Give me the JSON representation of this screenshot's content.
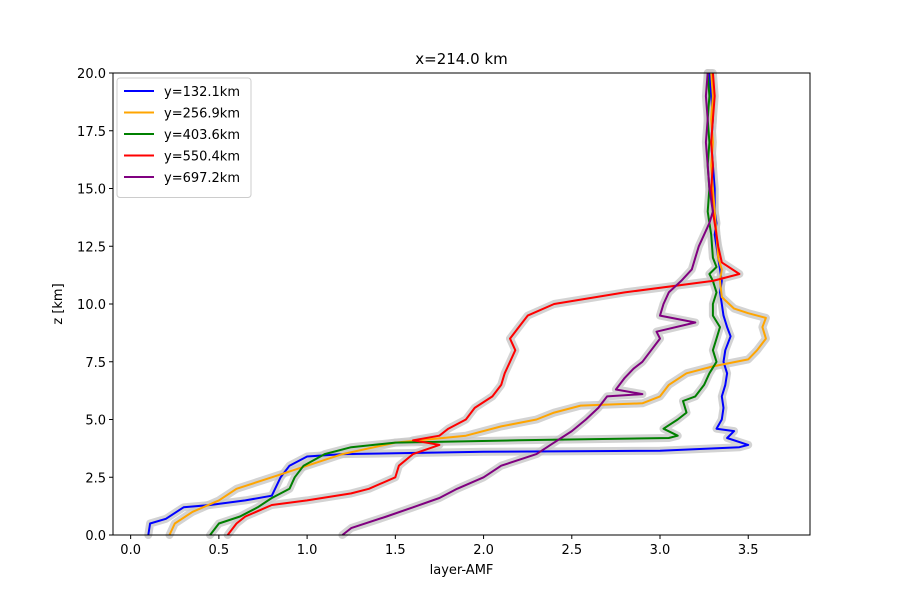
{
  "chart_data": {
    "type": "line",
    "title": "x=214.0 km",
    "xlabel": "layer-AMF",
    "ylabel": "z [km]",
    "xlim": [
      -0.1,
      3.85
    ],
    "ylim": [
      0,
      20
    ],
    "xticks": [
      "0.0",
      "0.5",
      "1.0",
      "1.5",
      "2.0",
      "2.5",
      "3.0",
      "3.5"
    ],
    "yticks": [
      "0.0",
      "2.5",
      "5.0",
      "7.5",
      "10.0",
      "12.5",
      "15.0",
      "17.5",
      "20.0"
    ],
    "grid": false,
    "legend_position": "top-left",
    "series": [
      {
        "name": "y=132.1km",
        "color": "#0000ff",
        "points": [
          [
            0.1,
            0
          ],
          [
            0.11,
            0.5
          ],
          [
            0.2,
            0.7
          ],
          [
            0.3,
            1.2
          ],
          [
            0.45,
            1.3
          ],
          [
            0.65,
            1.5
          ],
          [
            0.8,
            1.7
          ],
          [
            0.85,
            2.5
          ],
          [
            0.9,
            3.0
          ],
          [
            1.0,
            3.4
          ],
          [
            1.2,
            3.5
          ],
          [
            2.0,
            3.6
          ],
          [
            3.0,
            3.65
          ],
          [
            3.45,
            3.8
          ],
          [
            3.5,
            3.9
          ],
          [
            3.38,
            4.2
          ],
          [
            3.42,
            4.5
          ],
          [
            3.32,
            4.6
          ],
          [
            3.35,
            5.0
          ],
          [
            3.36,
            5.5
          ],
          [
            3.35,
            6.0
          ],
          [
            3.37,
            6.5
          ],
          [
            3.38,
            7.0
          ],
          [
            3.36,
            7.5
          ],
          [
            3.37,
            8.0
          ],
          [
            3.4,
            8.6
          ],
          [
            3.38,
            9.0
          ],
          [
            3.36,
            9.5
          ],
          [
            3.35,
            10.0
          ],
          [
            3.34,
            10.5
          ],
          [
            3.35,
            11.0
          ],
          [
            3.34,
            11.5
          ],
          [
            3.33,
            12.0
          ],
          [
            3.32,
            12.5
          ],
          [
            3.31,
            13.0
          ],
          [
            3.32,
            13.5
          ],
          [
            3.31,
            14.0
          ],
          [
            3.31,
            15.0
          ],
          [
            3.3,
            16.0
          ],
          [
            3.29,
            17.0
          ],
          [
            3.3,
            18.0
          ],
          [
            3.29,
            19.0
          ],
          [
            3.28,
            20.0
          ]
        ]
      },
      {
        "name": "y=256.9km",
        "color": "#ffa500",
        "points": [
          [
            0.22,
            0
          ],
          [
            0.25,
            0.5
          ],
          [
            0.35,
            1.0
          ],
          [
            0.5,
            1.5
          ],
          [
            0.6,
            2.0
          ],
          [
            0.8,
            2.5
          ],
          [
            1.0,
            3.0
          ],
          [
            1.2,
            3.5
          ],
          [
            1.5,
            4.0
          ],
          [
            1.9,
            4.3
          ],
          [
            2.1,
            4.7
          ],
          [
            2.3,
            5.0
          ],
          [
            2.4,
            5.3
          ],
          [
            2.55,
            5.6
          ],
          [
            2.9,
            5.7
          ],
          [
            3.0,
            6.0
          ],
          [
            3.05,
            6.5
          ],
          [
            3.15,
            7.0
          ],
          [
            3.3,
            7.3
          ],
          [
            3.5,
            7.6
          ],
          [
            3.55,
            8.0
          ],
          [
            3.6,
            8.5
          ],
          [
            3.58,
            9.0
          ],
          [
            3.6,
            9.4
          ],
          [
            3.5,
            9.6
          ],
          [
            3.42,
            9.8
          ],
          [
            3.35,
            10.3
          ],
          [
            3.34,
            11.0
          ],
          [
            3.35,
            11.5
          ],
          [
            3.33,
            12.0
          ],
          [
            3.32,
            13.0
          ],
          [
            3.31,
            14.0
          ],
          [
            3.3,
            15.0
          ],
          [
            3.29,
            16.0
          ],
          [
            3.3,
            17.0
          ],
          [
            3.29,
            18.0
          ],
          [
            3.3,
            19.0
          ],
          [
            3.29,
            20.0
          ]
        ]
      },
      {
        "name": "y=403.6km",
        "color": "#008000",
        "points": [
          [
            0.45,
            0
          ],
          [
            0.5,
            0.5
          ],
          [
            0.62,
            0.8
          ],
          [
            0.72,
            1.2
          ],
          [
            0.8,
            1.6
          ],
          [
            0.9,
            2.0
          ],
          [
            0.93,
            2.5
          ],
          [
            0.98,
            3.0
          ],
          [
            1.1,
            3.5
          ],
          [
            1.25,
            3.8
          ],
          [
            1.5,
            4.0
          ],
          [
            2.2,
            4.1
          ],
          [
            3.05,
            4.2
          ],
          [
            3.1,
            4.3
          ],
          [
            3.02,
            4.6
          ],
          [
            3.1,
            5.0
          ],
          [
            3.15,
            5.3
          ],
          [
            3.13,
            5.8
          ],
          [
            3.2,
            6.0
          ],
          [
            3.25,
            6.5
          ],
          [
            3.28,
            7.0
          ],
          [
            3.32,
            7.5
          ],
          [
            3.3,
            8.0
          ],
          [
            3.32,
            8.5
          ],
          [
            3.34,
            9.0
          ],
          [
            3.3,
            9.5
          ],
          [
            3.3,
            10.0
          ],
          [
            3.32,
            10.5
          ],
          [
            3.3,
            11.0
          ],
          [
            3.28,
            11.3
          ],
          [
            3.32,
            11.6
          ],
          [
            3.3,
            12.0
          ],
          [
            3.29,
            13.0
          ],
          [
            3.27,
            14.0
          ],
          [
            3.28,
            15.0
          ],
          [
            3.27,
            16.0
          ],
          [
            3.28,
            17.0
          ],
          [
            3.27,
            18.0
          ],
          [
            3.28,
            19.0
          ],
          [
            3.27,
            20.0
          ]
        ]
      },
      {
        "name": "y=550.4km",
        "color": "#ff0000",
        "points": [
          [
            0.55,
            0
          ],
          [
            0.6,
            0.5
          ],
          [
            0.65,
            0.8
          ],
          [
            0.8,
            1.3
          ],
          [
            1.0,
            1.5
          ],
          [
            1.25,
            1.8
          ],
          [
            1.35,
            2.0
          ],
          [
            1.5,
            2.5
          ],
          [
            1.52,
            3.0
          ],
          [
            1.6,
            3.5
          ],
          [
            1.75,
            3.9
          ],
          [
            1.6,
            4.1
          ],
          [
            1.75,
            4.3
          ],
          [
            1.8,
            4.6
          ],
          [
            1.9,
            5.0
          ],
          [
            1.95,
            5.5
          ],
          [
            2.05,
            6.0
          ],
          [
            2.1,
            6.5
          ],
          [
            2.12,
            7.0
          ],
          [
            2.15,
            7.5
          ],
          [
            2.18,
            8.0
          ],
          [
            2.15,
            8.5
          ],
          [
            2.2,
            9.0
          ],
          [
            2.25,
            9.5
          ],
          [
            2.4,
            10.0
          ],
          [
            2.8,
            10.5
          ],
          [
            3.3,
            11.0
          ],
          [
            3.45,
            11.3
          ],
          [
            3.35,
            11.8
          ],
          [
            3.33,
            12.5
          ],
          [
            3.32,
            13.0
          ],
          [
            3.3,
            14.0
          ],
          [
            3.29,
            15.0
          ],
          [
            3.3,
            16.0
          ],
          [
            3.29,
            17.0
          ],
          [
            3.3,
            18.0
          ],
          [
            3.31,
            19.0
          ],
          [
            3.3,
            20.0
          ]
        ]
      },
      {
        "name": "y=697.2km",
        "color": "#800080",
        "points": [
          [
            1.2,
            0
          ],
          [
            1.25,
            0.3
          ],
          [
            1.45,
            0.8
          ],
          [
            1.6,
            1.2
          ],
          [
            1.75,
            1.6
          ],
          [
            1.85,
            2.0
          ],
          [
            2.0,
            2.5
          ],
          [
            2.1,
            3.0
          ],
          [
            2.3,
            3.5
          ],
          [
            2.4,
            4.0
          ],
          [
            2.5,
            4.5
          ],
          [
            2.58,
            5.0
          ],
          [
            2.65,
            5.5
          ],
          [
            2.7,
            6.0
          ],
          [
            2.9,
            6.1
          ],
          [
            2.75,
            6.3
          ],
          [
            2.8,
            6.8
          ],
          [
            2.85,
            7.2
          ],
          [
            2.9,
            7.5
          ],
          [
            2.95,
            8.0
          ],
          [
            3.0,
            8.5
          ],
          [
            2.98,
            8.8
          ],
          [
            3.2,
            9.2
          ],
          [
            3.0,
            9.5
          ],
          [
            3.02,
            10.0
          ],
          [
            3.05,
            10.5
          ],
          [
            3.12,
            11.0
          ],
          [
            3.18,
            11.5
          ],
          [
            3.2,
            12.0
          ],
          [
            3.22,
            12.5
          ],
          [
            3.25,
            13.0
          ],
          [
            3.28,
            13.5
          ],
          [
            3.3,
            14.0
          ],
          [
            3.28,
            15.0
          ],
          [
            3.27,
            16.0
          ],
          [
            3.26,
            17.0
          ],
          [
            3.27,
            18.0
          ],
          [
            3.26,
            19.0
          ],
          [
            3.27,
            20.0
          ]
        ]
      }
    ]
  }
}
